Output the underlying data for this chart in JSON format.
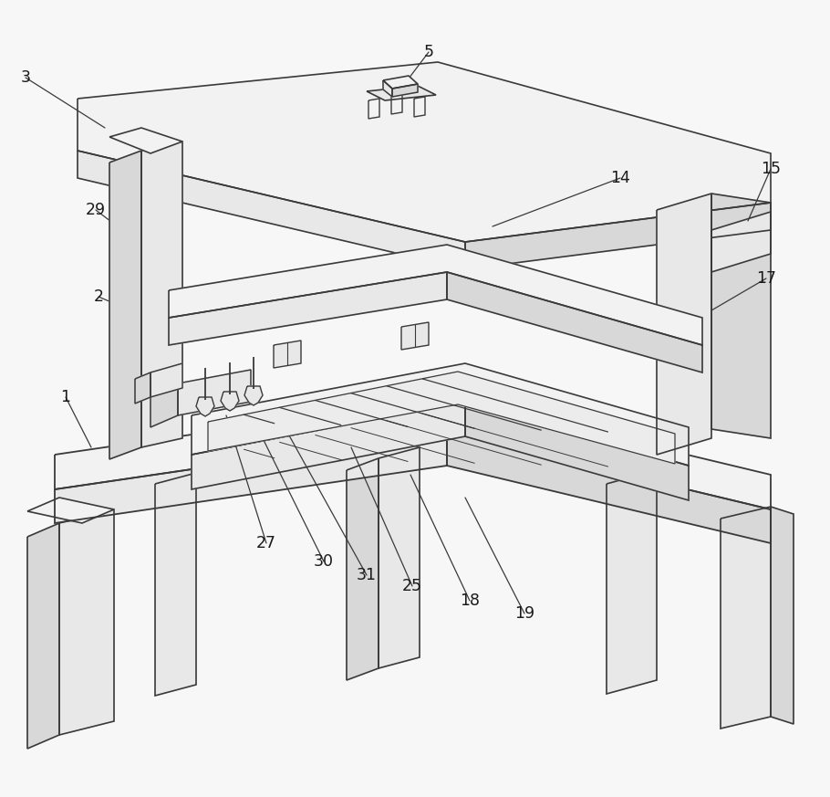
{
  "bg_color": "#f7f7f7",
  "line_color": "#3a3a3a",
  "fill_light": "#f2f2f2",
  "fill_mid": "#e8e8e8",
  "fill_dark": "#d8d8d8",
  "fill_side": "#e0e0e0"
}
